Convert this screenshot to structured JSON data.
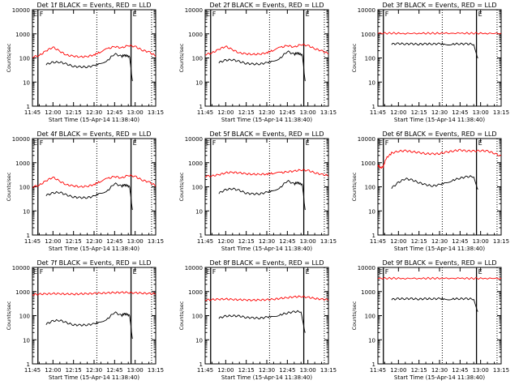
{
  "figure": {
    "grid": "3x3",
    "ylabel": "Counts/sec",
    "xlabel": "Start Time (15-Apr-14 11:38:40)",
    "x_tick_labels": [
      "11:45",
      "12:00",
      "12:15",
      "12:30",
      "12:45",
      "13:00",
      "13:15"
    ],
    "y_tick_labels": [
      "1",
      "10",
      "100",
      "1000",
      "10000"
    ],
    "marker_letters": {
      "left": "E",
      "mid": "F",
      "right": "E"
    },
    "colors": {
      "events": "#000000",
      "lld": "#ff0000",
      "axes": "#000000",
      "background": "#ffffff"
    }
  },
  "chart_data": [
    {
      "type": "line",
      "title": "Det 1f BLACK = Events, RED = LLD",
      "xlim_min": [
        7,
        97
      ],
      "ylim": [
        1,
        10000
      ],
      "log_y": true,
      "vertical_markers_min": [
        11,
        54,
        79,
        94
      ],
      "series": [
        {
          "name": "Events",
          "color": "#000000",
          "x": [
            17,
            22,
            27,
            32,
            37,
            42,
            47,
            52,
            56,
            62,
            67,
            72,
            74,
            76,
            78,
            80
          ],
          "y": [
            55,
            65,
            68,
            55,
            45,
            42,
            43,
            47,
            60,
            80,
            150,
            115,
            130,
            125,
            110,
            10
          ]
        },
        {
          "name": "LLD",
          "color": "#ff0000",
          "x": [
            7,
            12,
            17,
            22,
            27,
            32,
            37,
            42,
            47,
            52,
            56,
            62,
            67,
            72,
            77,
            82,
            87,
            92,
            97
          ],
          "y": [
            110,
            125,
            200,
            280,
            190,
            130,
            120,
            110,
            115,
            135,
            170,
            240,
            300,
            260,
            330,
            300,
            210,
            180,
            120
          ]
        }
      ]
    },
    {
      "type": "line",
      "title": "Det 2f BLACK = Events, RED = LLD",
      "xlim_min": [
        7,
        97
      ],
      "ylim": [
        1,
        10000
      ],
      "log_y": true,
      "vertical_markers_min": [
        11,
        54,
        79,
        94
      ],
      "series": [
        {
          "name": "Events",
          "color": "#000000",
          "x": [
            17,
            22,
            27,
            32,
            37,
            42,
            47,
            52,
            56,
            62,
            67,
            72,
            74,
            76,
            78,
            80
          ],
          "y": [
            65,
            80,
            85,
            70,
            60,
            55,
            57,
            62,
            75,
            100,
            190,
            140,
            160,
            150,
            130,
            10
          ]
        },
        {
          "name": "LLD",
          "color": "#ff0000",
          "x": [
            7,
            12,
            17,
            22,
            27,
            32,
            37,
            42,
            47,
            52,
            56,
            62,
            67,
            72,
            77,
            82,
            87,
            92,
            97
          ],
          "y": [
            140,
            160,
            230,
            300,
            220,
            160,
            150,
            140,
            145,
            165,
            200,
            270,
            330,
            280,
            360,
            330,
            240,
            200,
            150
          ]
        }
      ]
    },
    {
      "type": "line",
      "title": "Det 3f BLACK = Events, RED = LLD",
      "xlim_min": [
        7,
        97
      ],
      "ylim": [
        1,
        10000
      ],
      "log_y": true,
      "vertical_markers_min": [
        11,
        54,
        79,
        94
      ],
      "series": [
        {
          "name": "Events",
          "color": "#000000",
          "x": [
            17,
            22,
            27,
            32,
            37,
            42,
            47,
            52,
            56,
            62,
            67,
            72,
            77,
            80
          ],
          "y": [
            380,
            390,
            385,
            380,
            375,
            380,
            385,
            380,
            375,
            380,
            385,
            380,
            375,
            100
          ]
        },
        {
          "name": "LLD",
          "color": "#ff0000",
          "x": [
            7,
            17,
            27,
            37,
            47,
            57,
            67,
            77,
            87,
            97
          ],
          "y": [
            1050,
            1060,
            1040,
            1050,
            1055,
            1045,
            1050,
            1055,
            1045,
            1050
          ]
        }
      ]
    },
    {
      "type": "line",
      "title": "Det 4f BLACK = Events, RED = LLD",
      "xlim_min": [
        7,
        97
      ],
      "ylim": [
        1,
        10000
      ],
      "log_y": true,
      "vertical_markers_min": [
        11,
        54,
        79,
        94
      ],
      "series": [
        {
          "name": "Events",
          "color": "#000000",
          "x": [
            17,
            22,
            27,
            32,
            37,
            42,
            47,
            52,
            56,
            62,
            67,
            72,
            74,
            76,
            78,
            80
          ],
          "y": [
            45,
            55,
            60,
            45,
            38,
            35,
            36,
            40,
            55,
            70,
            140,
            105,
            120,
            115,
            100,
            10
          ]
        },
        {
          "name": "LLD",
          "color": "#ff0000",
          "x": [
            7,
            12,
            17,
            22,
            27,
            32,
            37,
            42,
            47,
            52,
            56,
            62,
            67,
            72,
            77,
            82,
            87,
            92,
            97
          ],
          "y": [
            100,
            115,
            180,
            250,
            170,
            120,
            110,
            100,
            105,
            125,
            160,
            220,
            270,
            230,
            300,
            270,
            190,
            160,
            110
          ]
        }
      ]
    },
    {
      "type": "line",
      "title": "Det 5f BLACK = Events, RED = LLD",
      "xlim_min": [
        7,
        97
      ],
      "ylim": [
        1,
        10000
      ],
      "log_y": true,
      "vertical_markers_min": [
        11,
        54,
        79,
        94
      ],
      "series": [
        {
          "name": "Events",
          "color": "#000000",
          "x": [
            17,
            22,
            27,
            32,
            37,
            42,
            47,
            52,
            56,
            62,
            67,
            72,
            74,
            76,
            78,
            80
          ],
          "y": [
            55,
            75,
            85,
            70,
            55,
            50,
            52,
            58,
            70,
            95,
            180,
            130,
            150,
            140,
            120,
            10
          ]
        },
        {
          "name": "LLD",
          "color": "#ff0000",
          "x": [
            7,
            12,
            17,
            22,
            27,
            32,
            37,
            42,
            47,
            52,
            56,
            62,
            67,
            72,
            77,
            82,
            87,
            92,
            97
          ],
          "y": [
            280,
            280,
            320,
            380,
            400,
            380,
            350,
            330,
            330,
            340,
            360,
            380,
            420,
            450,
            500,
            480,
            380,
            330,
            290
          ]
        }
      ]
    },
    {
      "type": "line",
      "title": "Det 6f BLACK = Events, RED = LLD",
      "xlim_min": [
        7,
        97
      ],
      "ylim": [
        1,
        10000
      ],
      "log_y": true,
      "vertical_markers_min": [
        11,
        54,
        79,
        94
      ],
      "series": [
        {
          "name": "Events",
          "color": "#000000",
          "x": [
            17,
            22,
            27,
            32,
            37,
            42,
            47,
            52,
            56,
            62,
            67,
            72,
            77,
            80
          ],
          "y": [
            90,
            150,
            220,
            190,
            150,
            120,
            110,
            120,
            150,
            190,
            230,
            260,
            270,
            80
          ]
        },
        {
          "name": "LLD",
          "color": "#ff0000",
          "x": [
            7,
            9,
            11,
            13,
            17,
            22,
            27,
            32,
            37,
            42,
            47,
            52,
            57,
            62,
            67,
            72,
            77,
            82,
            87,
            92,
            97
          ],
          "y": [
            800,
            600,
            700,
            1500,
            2500,
            3000,
            3100,
            2900,
            2600,
            2400,
            2300,
            2400,
            2700,
            3100,
            3300,
            3100,
            3000,
            3200,
            3000,
            2500,
            1800
          ]
        }
      ]
    },
    {
      "type": "line",
      "title": "Det 7f BLACK = Events, RED = LLD",
      "xlim_min": [
        7,
        97
      ],
      "ylim": [
        1,
        10000
      ],
      "log_y": true,
      "vertical_markers_min": [
        11,
        54,
        79,
        94
      ],
      "series": [
        {
          "name": "Events",
          "color": "#000000",
          "x": [
            17,
            22,
            27,
            32,
            37,
            42,
            47,
            52,
            56,
            62,
            67,
            72,
            74,
            76,
            78,
            80
          ],
          "y": [
            45,
            60,
            65,
            50,
            42,
            40,
            42,
            45,
            55,
            75,
            140,
            100,
            120,
            115,
            100,
            10
          ]
        },
        {
          "name": "LLD",
          "color": "#ff0000",
          "x": [
            7,
            12,
            17,
            22,
            27,
            32,
            37,
            42,
            47,
            52,
            57,
            62,
            67,
            72,
            77,
            82,
            87,
            92,
            97
          ],
          "y": [
            750,
            780,
            800,
            820,
            810,
            790,
            780,
            800,
            820,
            840,
            860,
            880,
            900,
            920,
            900,
            880,
            860,
            830,
            800
          ]
        }
      ]
    },
    {
      "type": "line",
      "title": "Det 8f BLACK = Events, RED = LLD",
      "xlim_min": [
        7,
        97
      ],
      "ylim": [
        1,
        10000
      ],
      "log_y": true,
      "vertical_markers_min": [
        11,
        54,
        79,
        94
      ],
      "series": [
        {
          "name": "Events",
          "color": "#000000",
          "x": [
            17,
            22,
            27,
            32,
            37,
            42,
            47,
            52,
            56,
            62,
            67,
            72,
            77,
            80
          ],
          "y": [
            80,
            95,
            100,
            95,
            85,
            80,
            80,
            85,
            95,
            110,
            130,
            145,
            150,
            20
          ]
        },
        {
          "name": "LLD",
          "color": "#ff0000",
          "x": [
            7,
            12,
            17,
            22,
            27,
            32,
            37,
            42,
            47,
            52,
            57,
            62,
            67,
            72,
            77,
            82,
            87,
            92,
            97
          ],
          "y": [
            450,
            460,
            480,
            490,
            470,
            460,
            450,
            440,
            450,
            460,
            480,
            520,
            560,
            600,
            620,
            580,
            520,
            480,
            460
          ]
        }
      ]
    },
    {
      "type": "line",
      "title": "Det 9f BLACK = Events, RED = LLD",
      "xlim_min": [
        7,
        97
      ],
      "ylim": [
        1,
        10000
      ],
      "log_y": true,
      "vertical_markers_min": [
        11,
        54,
        79,
        94
      ],
      "series": [
        {
          "name": "Events",
          "color": "#000000",
          "x": [
            17,
            22,
            27,
            32,
            37,
            42,
            47,
            52,
            56,
            62,
            67,
            72,
            77,
            80
          ],
          "y": [
            480,
            500,
            510,
            500,
            490,
            500,
            505,
            500,
            495,
            500,
            505,
            500,
            495,
            150
          ]
        },
        {
          "name": "LLD",
          "color": "#ff0000",
          "x": [
            7,
            17,
            27,
            37,
            47,
            57,
            67,
            77,
            87,
            97
          ],
          "y": [
            3500,
            3550,
            3500,
            3520,
            3540,
            3500,
            3520,
            3510,
            3530,
            3500
          ]
        }
      ]
    }
  ]
}
